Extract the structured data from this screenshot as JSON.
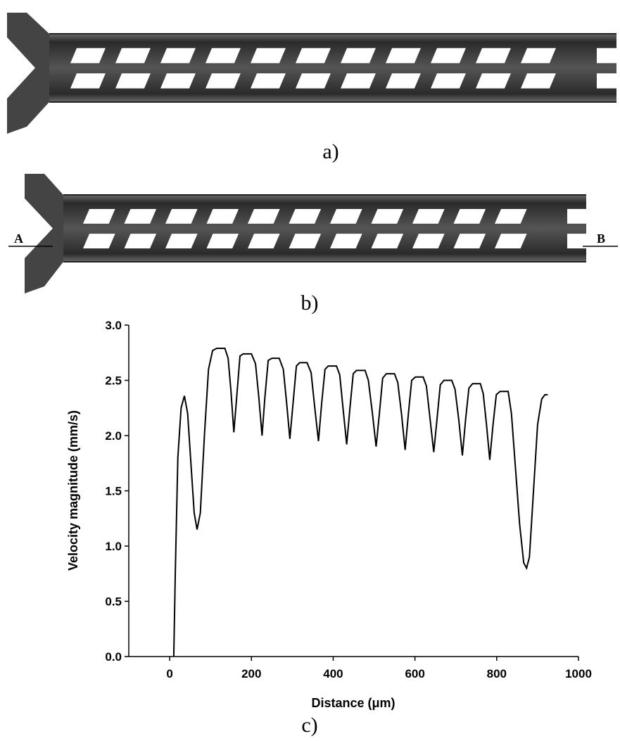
{
  "panels": {
    "a": "a)",
    "b": "b)",
    "c": "c)",
    "point_a": "A",
    "point_b": "B"
  },
  "chart_data": {
    "type": "line",
    "xlabel": "Distance (μm)",
    "ylabel": "Velocity magnitude (mm/s)",
    "color": "#000000",
    "xlim": [
      -100,
      1000
    ],
    "ylim": [
      0,
      3
    ],
    "xticks": [
      0,
      200,
      400,
      600,
      800,
      1000
    ],
    "yticks": [
      {
        "value": 0,
        "label": "0.0"
      },
      {
        "value": 0.5,
        "label": "0.5"
      },
      {
        "value": 1,
        "label": "1.0"
      },
      {
        "value": 1.5,
        "label": "1.5"
      },
      {
        "value": 2,
        "label": "2.0"
      },
      {
        "value": 2.5,
        "label": "2.5"
      },
      {
        "value": 3,
        "label": "3.0"
      }
    ],
    "x": [
      10,
      14,
      20,
      28,
      36,
      44,
      52,
      60,
      67,
      75,
      85,
      95,
      105,
      115,
      135,
      143,
      150,
      157,
      164,
      172,
      180,
      200,
      210,
      218,
      226,
      233,
      241,
      250,
      268,
      278,
      286,
      294,
      302,
      310,
      318,
      336,
      346,
      355,
      364,
      372,
      380,
      388,
      408,
      416,
      424,
      433,
      441,
      449,
      457,
      478,
      486,
      496,
      505,
      513,
      521,
      530,
      550,
      558,
      567,
      576,
      584,
      592,
      601,
      620,
      628,
      637,
      646,
      654,
      662,
      671,
      690,
      698,
      707,
      716,
      724,
      732,
      741,
      760,
      767,
      775,
      783,
      791,
      799,
      808,
      828,
      836,
      846,
      856,
      866,
      873,
      880,
      890,
      900,
      910,
      918,
      925
    ],
    "values": [
      0,
      0.8,
      1.8,
      2.25,
      2.36,
      2.2,
      1.75,
      1.3,
      1.15,
      1.3,
      2.0,
      2.6,
      2.77,
      2.79,
      2.79,
      2.7,
      2.4,
      2.03,
      2.35,
      2.72,
      2.74,
      2.74,
      2.65,
      2.35,
      2.0,
      2.35,
      2.68,
      2.7,
      2.7,
      2.6,
      2.3,
      1.97,
      2.3,
      2.63,
      2.66,
      2.66,
      2.57,
      2.25,
      1.95,
      2.3,
      2.6,
      2.63,
      2.63,
      2.55,
      2.25,
      1.92,
      2.25,
      2.56,
      2.59,
      2.59,
      2.5,
      2.2,
      1.9,
      2.2,
      2.52,
      2.56,
      2.56,
      2.48,
      2.2,
      1.87,
      2.2,
      2.5,
      2.53,
      2.53,
      2.45,
      2.15,
      1.85,
      2.15,
      2.46,
      2.5,
      2.5,
      2.42,
      2.15,
      1.82,
      2.15,
      2.43,
      2.47,
      2.47,
      2.38,
      2.1,
      1.78,
      2.1,
      2.37,
      2.4,
      2.4,
      2.2,
      1.7,
      1.2,
      0.85,
      0.8,
      0.9,
      1.5,
      2.1,
      2.33,
      2.37,
      2.37
    ]
  }
}
